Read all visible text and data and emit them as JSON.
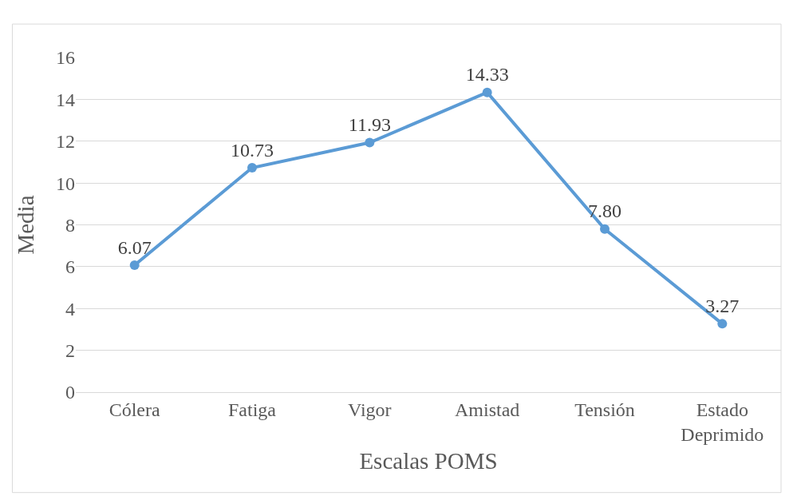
{
  "chart_data": {
    "type": "line",
    "xlabel": "Escalas POMS",
    "ylabel": "Media",
    "categories": [
      "Cólera",
      "Fatiga",
      "Vigor",
      "Amistad",
      "Tensión",
      "Estado Deprimido"
    ],
    "series": [
      {
        "color": "#5b9bd5",
        "values": [
          6.07,
          10.73,
          11.93,
          14.33,
          7.8,
          3.27
        ],
        "value_labels": [
          "6.07",
          "10.73",
          "11.93",
          "14.33",
          "7.80",
          "3.27"
        ]
      }
    ],
    "ylim": [
      0,
      16
    ],
    "yticks": [
      0,
      2,
      4,
      6,
      8,
      10,
      12,
      14,
      16
    ],
    "grid": "y",
    "marker": "circle",
    "line_style": "solid"
  }
}
